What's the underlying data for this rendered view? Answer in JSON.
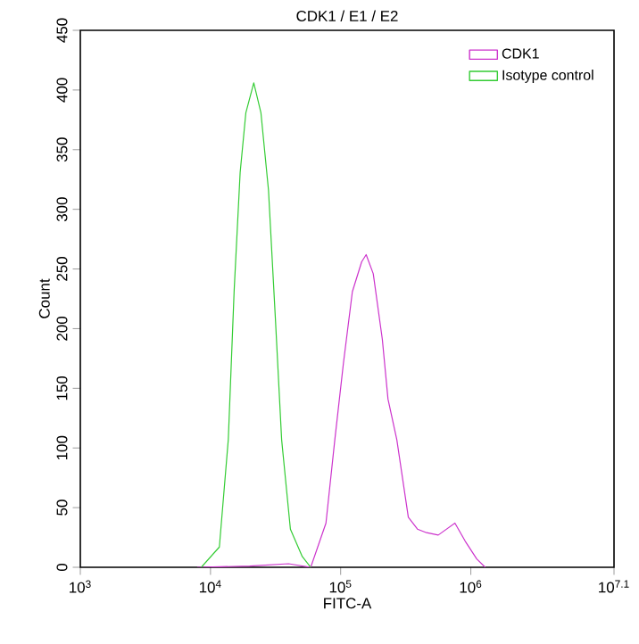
{
  "chart_data": {
    "type": "line",
    "title": "CDK1 / E1 / E2",
    "xlabel": "FITC-A",
    "ylabel": "Count",
    "log": "x",
    "xlim": [
      1000,
      12589254
    ],
    "ylim": [
      0,
      450
    ],
    "xticks": [
      {
        "value": 1000,
        "label": "10$^{3}$"
      },
      {
        "value": 10000,
        "label": "10$^{4}$"
      },
      {
        "value": 100000,
        "label": "10$^{5}$"
      },
      {
        "value": 1000000,
        "label": "10$^{6}$"
      },
      {
        "value": 12589254,
        "label": "10$^{7.1}$"
      }
    ],
    "yticks": [
      0,
      50,
      100,
      150,
      200,
      250,
      300,
      350,
      400,
      450
    ],
    "legend": "top right",
    "marker": "none",
    "line_style": "solid",
    "grid": false,
    "series": [
      {
        "name": "CDK1",
        "color": "#cc33cc",
        "x": [
          7900,
          20000,
          39800,
          58900,
          77100,
          90200,
          105000,
          123000,
          145000,
          157000,
          178000,
          209000,
          231000,
          270000,
          331000,
          389000,
          457000,
          562000,
          755000,
          904000,
          1110000,
          1290000
        ],
        "values": [
          0,
          1,
          3,
          0,
          37,
          107,
          171,
          231,
          256,
          262,
          246,
          191,
          141,
          107,
          42,
          32,
          29,
          27,
          37,
          22,
          7,
          0
        ]
      },
      {
        "name": "Isotype control",
        "color": "#33cc33",
        "x": [
          8500,
          11700,
          13700,
          15200,
          16900,
          18700,
          21500,
          24400,
          27900,
          31600,
          35200,
          41100,
          50700,
          58900
        ],
        "values": [
          0,
          17,
          107,
          232,
          331,
          381,
          406,
          381,
          316,
          206,
          107,
          32,
          9,
          0
        ]
      }
    ]
  }
}
